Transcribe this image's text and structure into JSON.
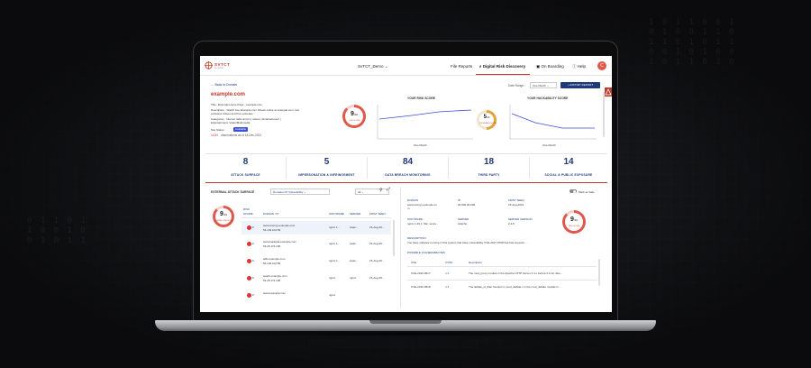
{
  "app": {
    "logo_text": "SVTCT",
    "logo_sub": "by sector",
    "org": "SvTCT_Demo",
    "nav": {
      "file_reports": "File Reports",
      "digital_risk": "Digital Risk Discovery",
      "on_boarding": "On Boarding",
      "help": "Help"
    },
    "avatar_letter": "C"
  },
  "controls": {
    "back": "← Back to Domain",
    "date_range_label": "Date Range :",
    "date_range_value": "One Month",
    "export": "+ EXPORT REPORT"
  },
  "site": {
    "domain": "example.com",
    "title_line": "Title :  Example Home Page - example.com",
    "description_line1": "Description :  Watch free Example.com Shows online at example.com. Get",
    "description_line2": "exclusive videos and free episodes.",
    "categories_line1": "Categories :  Internet radio and tv | videos | Entertainment |",
    "categories_line2": "Entertainment, Video/Multimedia",
    "site_status_label": "Site Status :",
    "site_status_value": "Available",
    "observations_count": "11110",
    "observations_text": "observations as of 18-Dec-2021"
  },
  "gauges": {
    "site_score": "9",
    "site_score_sub": "/10",
    "site_score_label": "LOW SCORE",
    "risk_score_title": "YOUR RISK SCORE",
    "risk_period": "One Month",
    "mid_score": "5",
    "mid_score_sub": "/10",
    "mid_score_label": "VULNERABLE SCORE",
    "hack_title": "YOUR HACKABILITY SCORE",
    "hack_period": "One Month"
  },
  "stats": [
    {
      "value": "8",
      "label": "ATTACK SURFACE"
    },
    {
      "value": "5",
      "label": "IMPERSONATION & INFRINGEMENT"
    },
    {
      "value": "84",
      "label": "DATA BREACH MONITORING"
    },
    {
      "value": "18",
      "label": "THIRD PARTY"
    },
    {
      "value": "14",
      "label": "SOCIAL & PUBLIC EXPOSURE"
    }
  ],
  "eas": {
    "title": "EXTERNAL ATTACK SURFACE",
    "filter": "Domains/ IP Vulnerability",
    "all": "All",
    "score": "9",
    "score_sub": "/10",
    "score_label": "OVERALL RISK SCORE",
    "headers": {
      "risk": "RISK",
      "score": "SCORE",
      "domain": "DOMAIN / IP",
      "software": "SOFTWARE",
      "server": "SERVER",
      "first_seen": "FIRST SEEN"
    },
    "rows": [
      {
        "score": "9",
        "domain": "www.ammyy.example.com",
        "ip": "54.149.104.59",
        "software": "nginx 1...",
        "server": "Apac...",
        "first_seen": "15-Aug-20..."
      },
      {
        "score": "9",
        "domain": "www.backstar.example.com",
        "ip": "52.26.174.106",
        "software": "nginx 1...",
        "server": "Apac...",
        "first_seen": "15-Aug-20..."
      },
      {
        "score": "9",
        "domain": "adfs.example.com",
        "ip": "54.149.104.59",
        "software": "nginx 1...",
        "server": "Apac...",
        "first_seen": "15-Aug-20..."
      },
      {
        "score": "9",
        "domain": "watch.example.com",
        "ip": "52.26.174.106",
        "software": "nginx",
        "server": "nginx",
        "first_seen": "15-Aug-20..."
      },
      {
        "score": "9",
        "domain": "www.example.com",
        "ip": "",
        "software": "nginx",
        "server": "",
        "first_seen": ""
      }
    ]
  },
  "detail": {
    "mark_safe": "Mark as Safe",
    "h_domain": "DOMAIN",
    "v_domain1": "www.ammyy.example.co",
    "v_domain2": "m",
    "h_ip": "IP",
    "v_ip": "00.000.00.000",
    "h_first_seen": "FIRST SEEN",
    "v_first_seen": "15-Aug-2021",
    "h_software": "SOFTWARE",
    "v_software": "nginx 1.20.1, http, serve...",
    "h_server": "SERVER",
    "v_server": "Apache",
    "h_server_version": "SERVER VERSION",
    "v_server_version": "2.4.6",
    "score": "9",
    "score_sub": "/10",
    "score_label": "RISK SCORE",
    "h_description": "DESCRIPTION",
    "v_description": "You have software running in this system that have vulnerability CVE-2017-9798 that has a known...",
    "h_possible": "POSSIBLE VULNERABILITIES",
    "vuln_headers": {
      "cve": "CVE",
      "cvss": "CVSS",
      "desc": "Description"
    },
    "vulns": [
      {
        "cve": "CVE-2016-0517",
        "cvss": "4.3",
        "desc": "The mod_proxy module in the Apache HTTP Server 2.4.x before 2.4.10, whe..."
      },
      {
        "cve": "CVE-2016-0518",
        "cvss": "4.3",
        "desc": "The deflate_in_filter function in mod_deflate.c in the mod_deflate module in..."
      }
    ]
  },
  "colors": {
    "accent": "#c0392b",
    "navy": "#1f3a7a",
    "chart_line": "#3b4fd8"
  }
}
